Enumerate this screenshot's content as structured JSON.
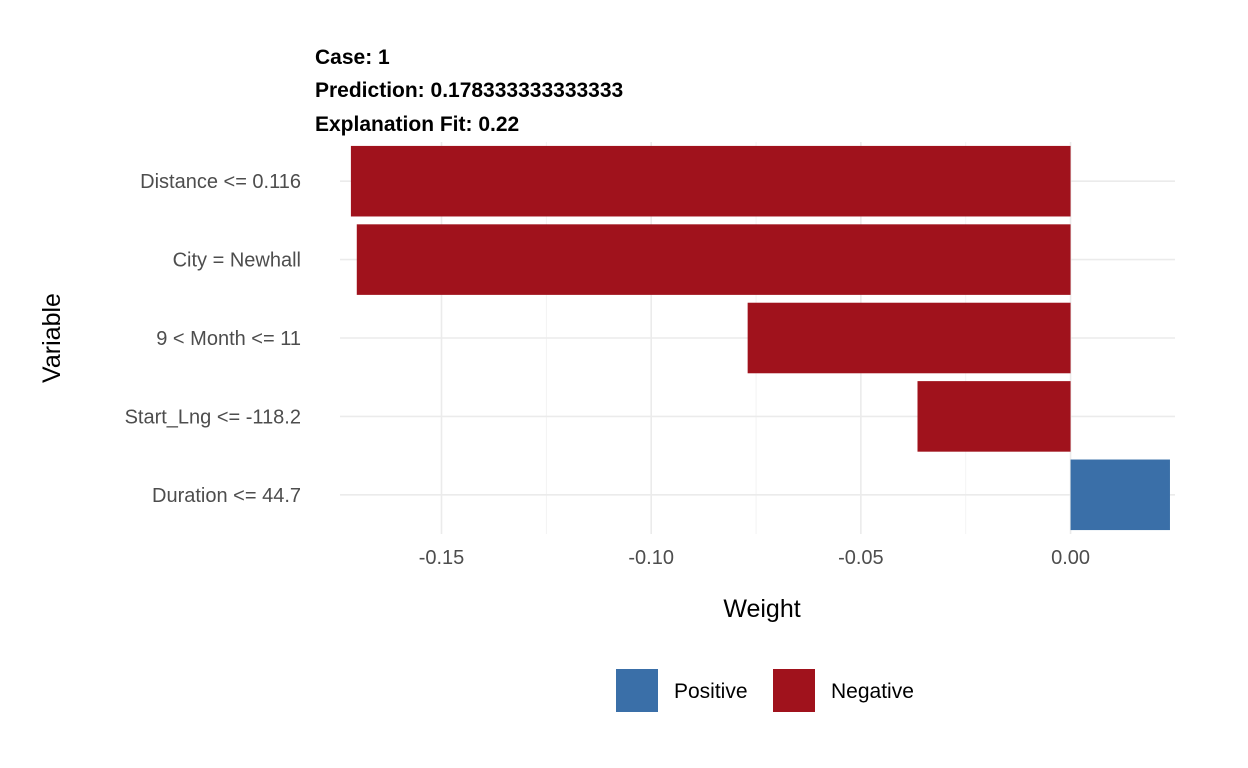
{
  "chart_data": {
    "type": "bar",
    "orientation": "horizontal",
    "title_lines": [
      "Case: 1",
      "Prediction: 0.178333333333333",
      "Explanation Fit: 0.22"
    ],
    "categories": [
      "Distance <= 0.116",
      "City = Newhall",
      "9 < Month <= 11",
      "Start_Lng <= -118.2",
      "Duration <= 44.7"
    ],
    "values": [
      -0.1716,
      -0.1702,
      -0.077,
      -0.0365,
      0.0237
    ],
    "xlabel": "Weight",
    "ylabel": "Variable",
    "xlim": [
      -0.1742,
      0.0249
    ],
    "x_ticks": [
      -0.15,
      -0.1,
      -0.05,
      0.0
    ],
    "x_tick_labels": [
      "-0.15",
      "-0.10",
      "-0.05",
      "0.00"
    ],
    "grid": true,
    "legend": {
      "position": "bottom",
      "items": [
        {
          "label": "Positive",
          "color": "#3a6fa8"
        },
        {
          "label": "Negative",
          "color": "#a0121c"
        }
      ]
    },
    "colors": {
      "positive": "#3a6fa8",
      "negative": "#a0121c"
    }
  }
}
